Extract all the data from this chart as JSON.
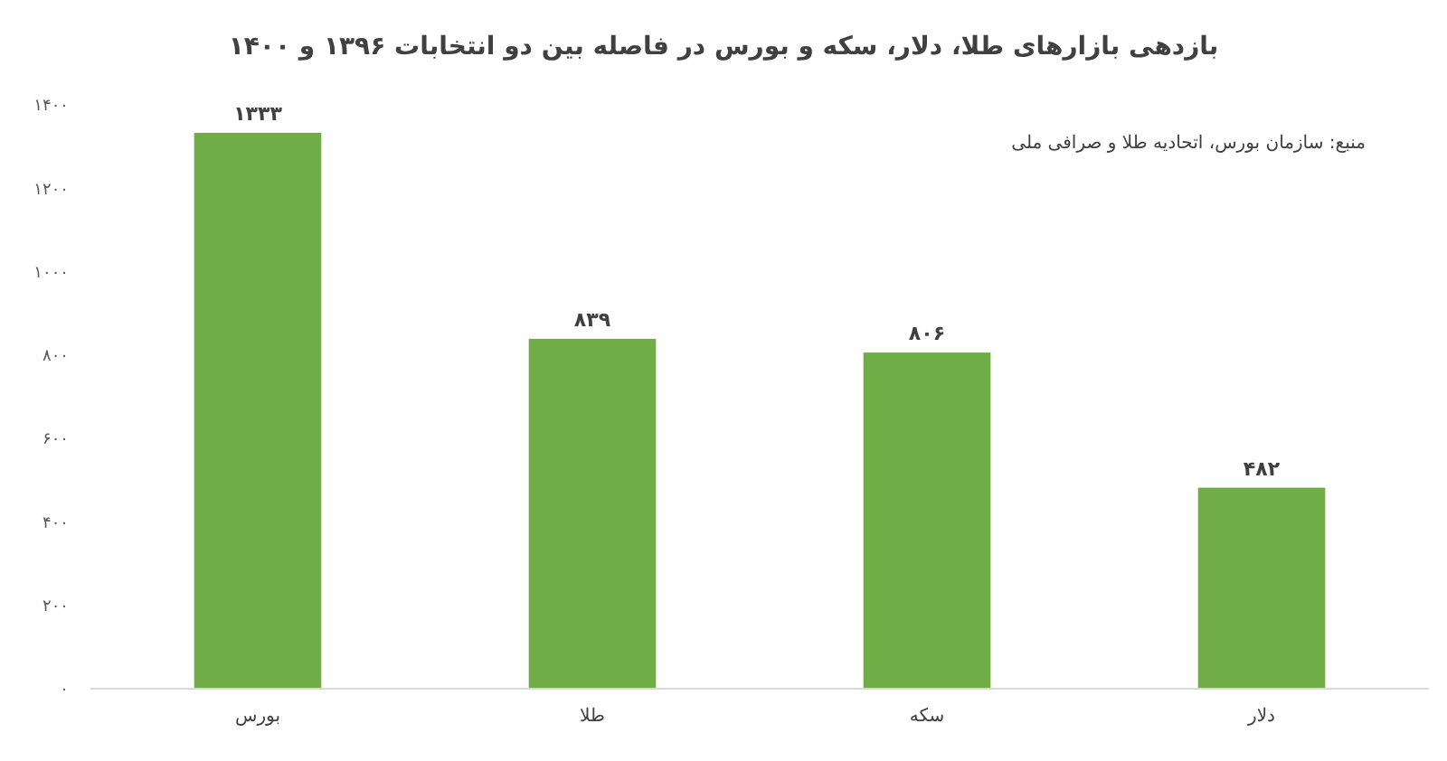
{
  "chart_data": {
    "type": "bar",
    "title": "بازدهی بازارهای طلا، دلار، سکه و بورس در فاصله بین دو انتخابات ۱۳۹۶ و ۱۴۰۰",
    "annotations": [
      "منبع: سازمان بورس، اتحادیه طلا و صرافی ملی"
    ],
    "categories": [
      "بورس",
      "طلا",
      "سکه",
      "دلار"
    ],
    "values": [
      1333,
      839,
      806,
      482
    ],
    "value_labels": [
      "۱۳۳۳",
      "۸۳۹",
      "۸۰۶",
      "۴۸۲"
    ],
    "color": "#70ad47",
    "ylim": [
      0,
      1400
    ],
    "yticks": [
      {
        "value": 0,
        "label": "۰"
      },
      {
        "value": 200,
        "label": "۲۰۰"
      },
      {
        "value": 400,
        "label": "۴۰۰"
      },
      {
        "value": 600,
        "label": "۶۰۰"
      },
      {
        "value": 800,
        "label": "۸۰۰"
      },
      {
        "value": 1000,
        "label": "۱۰۰۰"
      },
      {
        "value": 1200,
        "label": "۱۲۰۰"
      },
      {
        "value": 1400,
        "label": "۱۴۰۰"
      }
    ],
    "grid": false
  }
}
